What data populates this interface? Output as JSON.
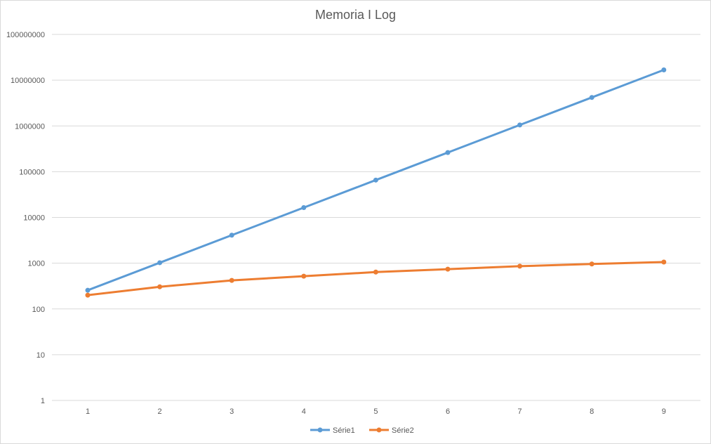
{
  "chart_data": {
    "type": "line",
    "title": "Memoria I Log",
    "xlabel": "",
    "ylabel": "",
    "y_scale": "log",
    "ylim": [
      1,
      100000000
    ],
    "y_ticks": [
      "1",
      "10",
      "100",
      "1000",
      "10000",
      "100000",
      "1000000",
      "10000000",
      "100000000"
    ],
    "categories": [
      "1",
      "2",
      "3",
      "4",
      "5",
      "6",
      "7",
      "8",
      "9"
    ],
    "grid": true,
    "legend_position": "bottom",
    "series": [
      {
        "name": "Série1",
        "color": "#5b9bd5",
        "values": [
          256,
          1024,
          4096,
          16384,
          65536,
          262144,
          1048576,
          4194304,
          16777216
        ]
      },
      {
        "name": "Série2",
        "color": "#ed7d31",
        "values": [
          200,
          305,
          420,
          520,
          640,
          740,
          860,
          960,
          1060
        ]
      }
    ]
  }
}
